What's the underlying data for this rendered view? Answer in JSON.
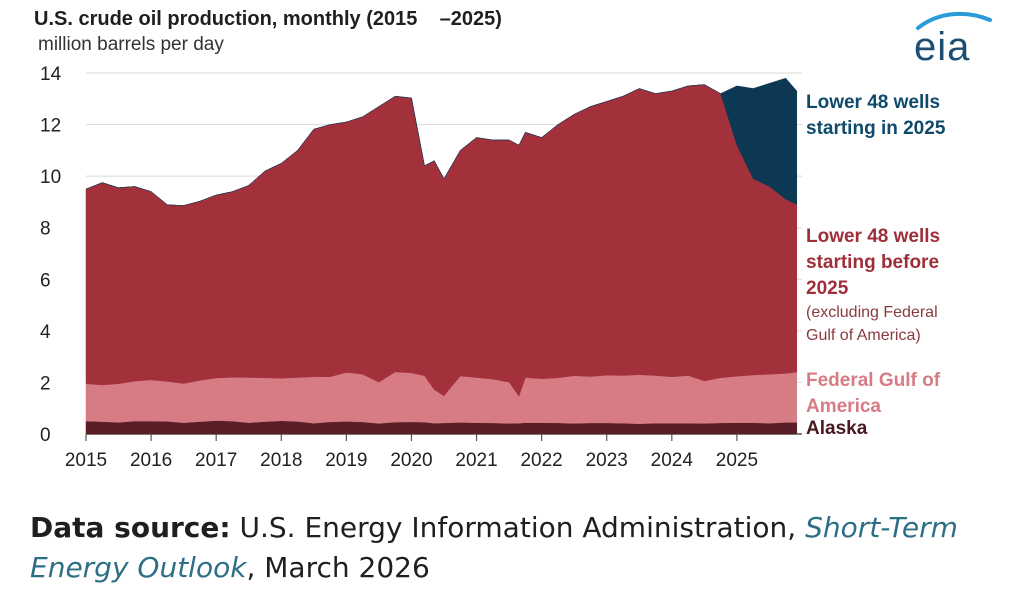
{
  "chart_data": {
    "type": "area",
    "stacked": true,
    "title": "U.S. crude oil production, monthly (2015    –2025)",
    "subtitle": "million barrels per day",
    "ylim": [
      0,
      14
    ],
    "y_ticks": [
      0,
      2,
      4,
      6,
      8,
      10,
      12,
      14
    ],
    "x_ticks": [
      "2015",
      "2016",
      "2017",
      "2018",
      "2019",
      "2020",
      "2021",
      "2022",
      "2023",
      "2024",
      "2025"
    ],
    "xlim": [
      2015,
      2026
    ],
    "grid": "horizontal",
    "x": [
      2015.0,
      2015.25,
      2015.5,
      2015.75,
      2016.0,
      2016.25,
      2016.5,
      2016.75,
      2017.0,
      2017.25,
      2017.5,
      2017.75,
      2018.0,
      2018.25,
      2018.5,
      2018.75,
      2019.0,
      2019.25,
      2019.5,
      2019.75,
      2020.0,
      2020.2,
      2020.35,
      2020.5,
      2020.75,
      2021.0,
      2021.25,
      2021.5,
      2021.65,
      2021.75,
      2022.0,
      2022.25,
      2022.5,
      2022.75,
      2023.0,
      2023.25,
      2023.5,
      2023.75,
      2024.0,
      2024.25,
      2024.5,
      2024.75,
      2025.0,
      2025.25,
      2025.5,
      2025.75,
      2025.92
    ],
    "series": [
      {
        "name": "Alaska",
        "color": "#5a1e26",
        "values": [
          0.5,
          0.48,
          0.45,
          0.5,
          0.5,
          0.49,
          0.44,
          0.48,
          0.52,
          0.5,
          0.44,
          0.48,
          0.51,
          0.49,
          0.42,
          0.47,
          0.49,
          0.47,
          0.41,
          0.46,
          0.47,
          0.46,
          0.42,
          0.43,
          0.45,
          0.44,
          0.43,
          0.41,
          0.42,
          0.44,
          0.44,
          0.43,
          0.41,
          0.43,
          0.43,
          0.42,
          0.4,
          0.42,
          0.42,
          0.42,
          0.41,
          0.43,
          0.44,
          0.44,
          0.42,
          0.45,
          0.45
        ]
      },
      {
        "name": "Federal Gulf of America",
        "color": "#d77b85",
        "values": [
          1.45,
          1.42,
          1.5,
          1.55,
          1.6,
          1.55,
          1.52,
          1.6,
          1.65,
          1.7,
          1.75,
          1.7,
          1.65,
          1.7,
          1.8,
          1.75,
          1.9,
          1.85,
          1.6,
          1.95,
          1.9,
          1.8,
          1.3,
          1.05,
          1.8,
          1.75,
          1.7,
          1.6,
          1.05,
          1.75,
          1.7,
          1.75,
          1.85,
          1.8,
          1.85,
          1.85,
          1.9,
          1.85,
          1.8,
          1.85,
          1.65,
          1.75,
          1.8,
          1.85,
          1.9,
          1.9,
          1.95
        ]
      },
      {
        "name": "Lower 48 wells starting before 2025",
        "color": "#a2313c",
        "values": [
          7.55,
          7.85,
          7.6,
          7.55,
          7.3,
          6.85,
          6.9,
          6.95,
          7.1,
          7.2,
          7.45,
          8.02,
          8.34,
          8.81,
          9.6,
          9.78,
          9.71,
          9.98,
          10.69,
          10.69,
          10.66,
          8.14,
          8.88,
          8.42,
          8.75,
          9.31,
          9.27,
          9.39,
          9.73,
          9.51,
          9.36,
          9.82,
          10.14,
          10.47,
          10.62,
          10.83,
          11.1,
          10.93,
          11.08,
          11.23,
          11.49,
          11.02,
          8.96,
          7.61,
          7.28,
          6.75,
          6.5
        ]
      },
      {
        "name": "Lower 48 wells starting in 2025",
        "color": "#0c3854",
        "values": [
          0,
          0,
          0,
          0,
          0,
          0,
          0,
          0,
          0,
          0,
          0,
          0,
          0,
          0,
          0,
          0,
          0,
          0,
          0,
          0,
          0,
          0,
          0,
          0,
          0,
          0,
          0,
          0,
          0,
          0,
          0,
          0,
          0,
          0,
          0,
          0,
          0,
          0,
          0,
          0,
          0,
          0,
          2.3,
          3.5,
          4.0,
          4.7,
          4.4
        ]
      }
    ],
    "labels": {
      "new_wells": [
        "Lower 48 wells",
        "starting in 2025"
      ],
      "old_wells": [
        "Lower 48 wells",
        "starting before",
        "2025"
      ],
      "old_wells_note": [
        "(excluding Federal",
        "Gulf of America)"
      ],
      "gulf": [
        "Federal Gulf of",
        "America"
      ],
      "alaska": "Alaska"
    },
    "label_colors": {
      "new_wells": "#0f4a6b",
      "old_wells": "#9e2f3a",
      "gulf": "#d77b85",
      "alaska": "#4a1a20"
    }
  },
  "logo": {
    "text": "eia",
    "color": "#1b4f72",
    "accent": "#2a9bd8"
  },
  "source": {
    "head": "Data source:",
    "text": " U.S. Energy Information Administration, ",
    "link": "Short-Term Energy Outlook",
    "tail": ", March 2026"
  }
}
